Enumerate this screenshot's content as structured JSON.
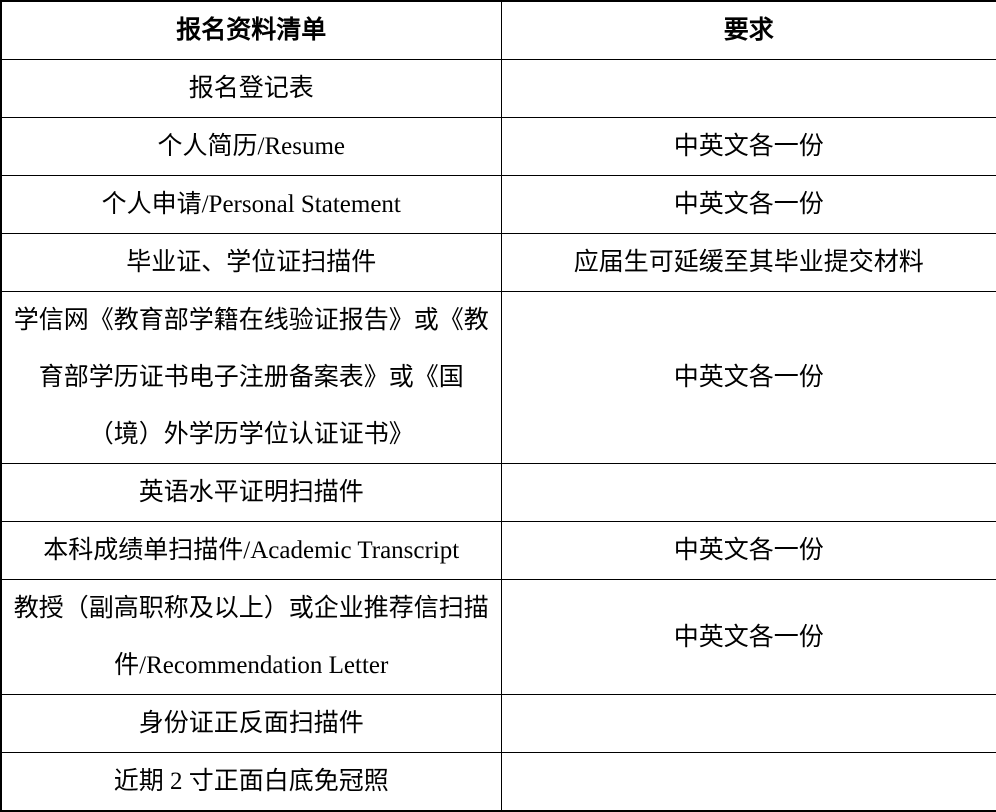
{
  "table": {
    "headers": {
      "item": "报名资料清单",
      "requirement": "要求"
    },
    "rows": [
      {
        "item": "报名登记表",
        "requirement": ""
      },
      {
        "item": "个人简历/Resume",
        "requirement": "中英文各一份"
      },
      {
        "item": "个人申请/Personal Statement",
        "requirement": "中英文各一份"
      },
      {
        "item": "毕业证、学位证扫描件",
        "requirement": "应届生可延缓至其毕业提交材料"
      },
      {
        "item": "学信网《教育部学籍在线验证报告》或《教育部学历证书电子注册备案表》或《国（境）外学历学位认证证书》",
        "requirement": "中英文各一份"
      },
      {
        "item": "英语水平证明扫描件",
        "requirement": ""
      },
      {
        "item": "本科成绩单扫描件/Academic Transcript",
        "requirement": "中英文各一份"
      },
      {
        "item": "教授（副高职称及以上）或企业推荐信扫描件/Recommendation Letter",
        "requirement": "中英文各一份"
      },
      {
        "item": "身份证正反面扫描件",
        "requirement": ""
      },
      {
        "item": "近期 2 寸正面白底免冠照",
        "requirement": ""
      }
    ],
    "colors": {
      "border": "#000000",
      "text": "#000000",
      "background": "#ffffff"
    }
  }
}
